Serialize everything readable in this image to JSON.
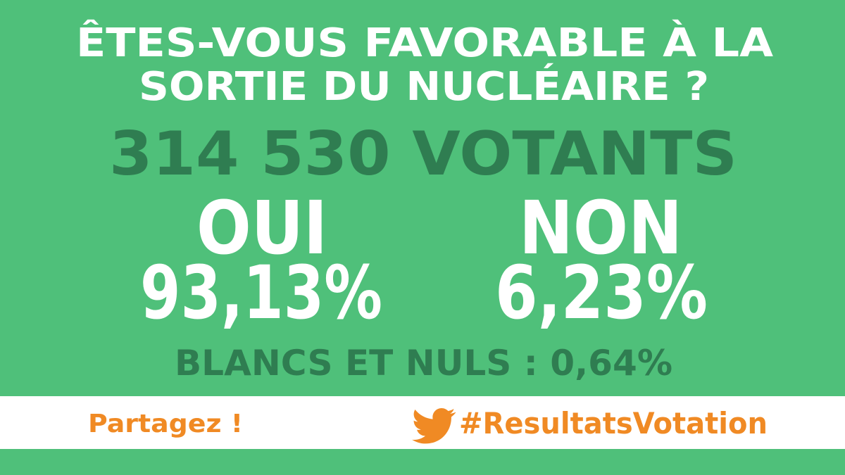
{
  "title": {
    "lines": [
      "ÊTES-VOUS FAVORABLE À LA",
      "SORTIE DU NUCLÉAIRE ?"
    ]
  },
  "voters": "314 530 VOTANTS",
  "results": [
    {
      "label": "OUI",
      "value": "93,13%"
    },
    {
      "label": "NON",
      "value": "6,23%"
    }
  ],
  "blank": "BLANCS ET NULS : 0,64%",
  "footer": {
    "share": "Partagez !",
    "hashtag": "#ResultatsVotation"
  }
}
